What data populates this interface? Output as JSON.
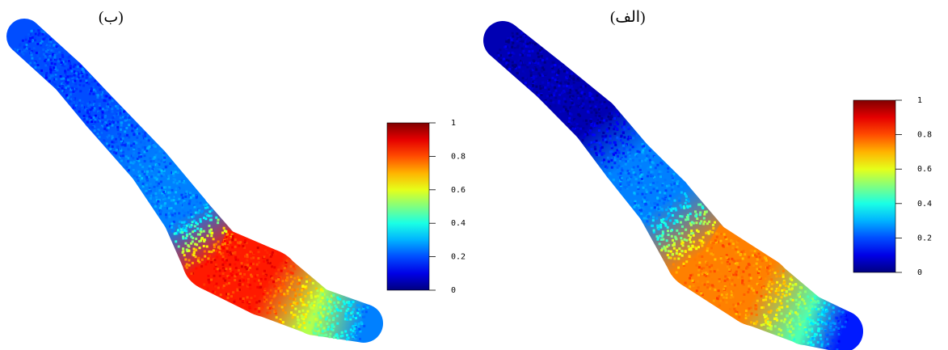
{
  "chart_data": [
    {
      "type": "heatmap",
      "title": "(ب)",
      "colormap": "jet",
      "colorbar": {
        "ticks": [
          "0",
          "0.2",
          "0.4",
          "0.6",
          "0.8",
          "1"
        ],
        "range": [
          0,
          1
        ]
      },
      "description_values": {
        "upper_section": 0.2,
        "middle_section": 0.25,
        "lower_bulge": 0.85,
        "tail": 0.25
      }
    },
    {
      "type": "heatmap",
      "title": "(الف)",
      "colormap": "jet",
      "colorbar": {
        "ticks": [
          "0",
          "0.2",
          "0.4",
          "0.6",
          "0.8",
          "1"
        ],
        "range": [
          0,
          1
        ]
      },
      "description_values": {
        "upper_section": 0.05,
        "middle_section": 0.25,
        "lower_bulge": 0.75,
        "tail": 0.15
      }
    }
  ]
}
